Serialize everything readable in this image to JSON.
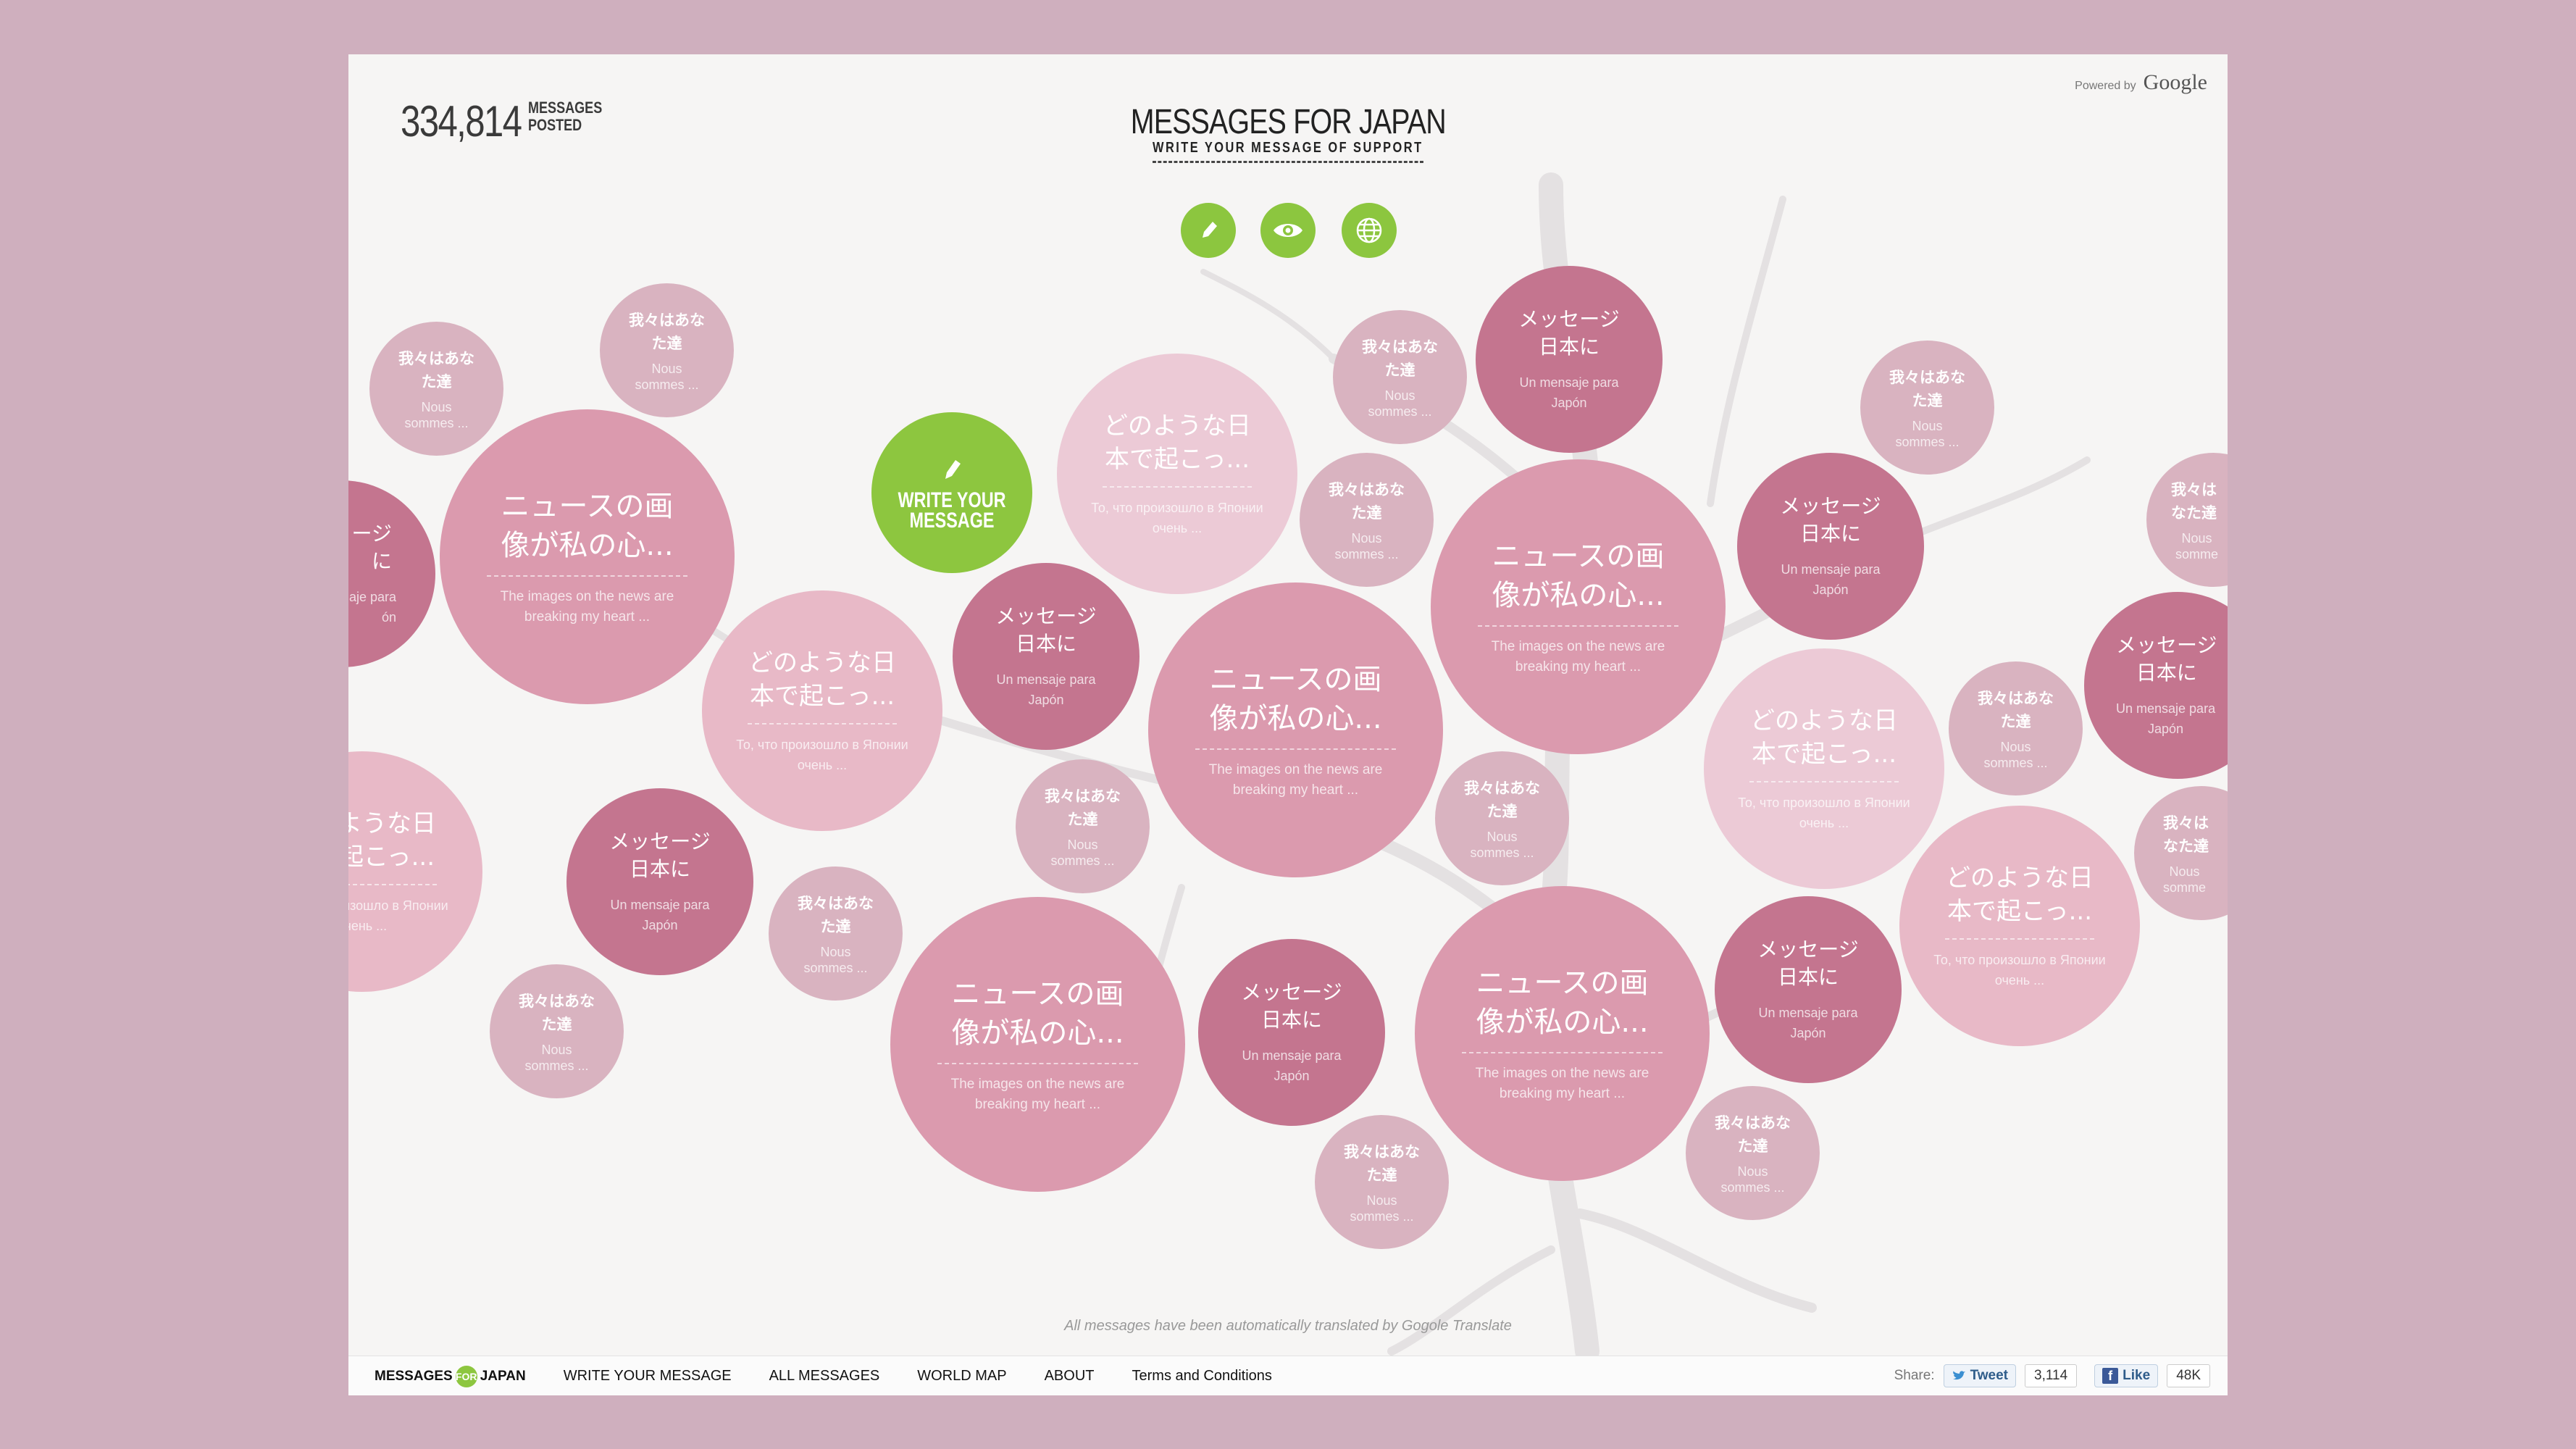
{
  "header": {
    "counter_value": "334,814",
    "counter_label": "MESSAGES POSTED",
    "title": "MESSAGES FOR JAPAN",
    "subtitle": "WRITE YOUR MESSAGE OF SUPPORT",
    "powered_by": "Powered by",
    "powered_brand": "Google"
  },
  "top_icons": [
    "pencil-icon",
    "eye-icon",
    "globe-icon"
  ],
  "write_bubble": {
    "label": "WRITE YOUR MESSAGE"
  },
  "messages": {
    "news": {
      "jp": "ニュースの画像が私の心...",
      "tr": "The images on the news are breaking my heart ..."
    },
    "what": {
      "jp": "どのような日本で起こっ...",
      "tr": "То, что произошло в Японии очень ..."
    },
    "msg": {
      "jp": "メッセージ日本に",
      "tr": "Un mensaje para Japón"
    },
    "we": {
      "jp": "我々はあなた達",
      "tr": "Nous sommes ..."
    },
    "msg_partial": {
      "jp": "ージ\nに",
      "tr": "aje para\nón"
    },
    "msg_edge": {
      "jp": "メッセージ\n日本に",
      "tr": "Un mensaje para\nJapón"
    },
    "we_edge": {
      "jp": "我々は\nなた達",
      "tr": "Nous\nsomme"
    }
  },
  "note": "All messages have been automatically translated by Gogole Translate",
  "footer": {
    "logo_left": "MESSAGES",
    "logo_for": "FOR",
    "logo_right": "JAPAN",
    "nav": [
      "WRITE YOUR MESSAGE",
      "ALL MESSAGES",
      "WORLD MAP",
      "ABOUT",
      "Terms and Conditions"
    ],
    "share_label": "Share:",
    "tweet_label": "Tweet",
    "tweet_count": "3,114",
    "like_label": "Like",
    "like_count": "48K"
  },
  "colors": {
    "page_bg": "#cfafbe",
    "accent_green": "#8dc63f",
    "bubble_dark": "#c4758f",
    "bubble_main": "#db9aae",
    "bubble_light": "#eccad6"
  }
}
